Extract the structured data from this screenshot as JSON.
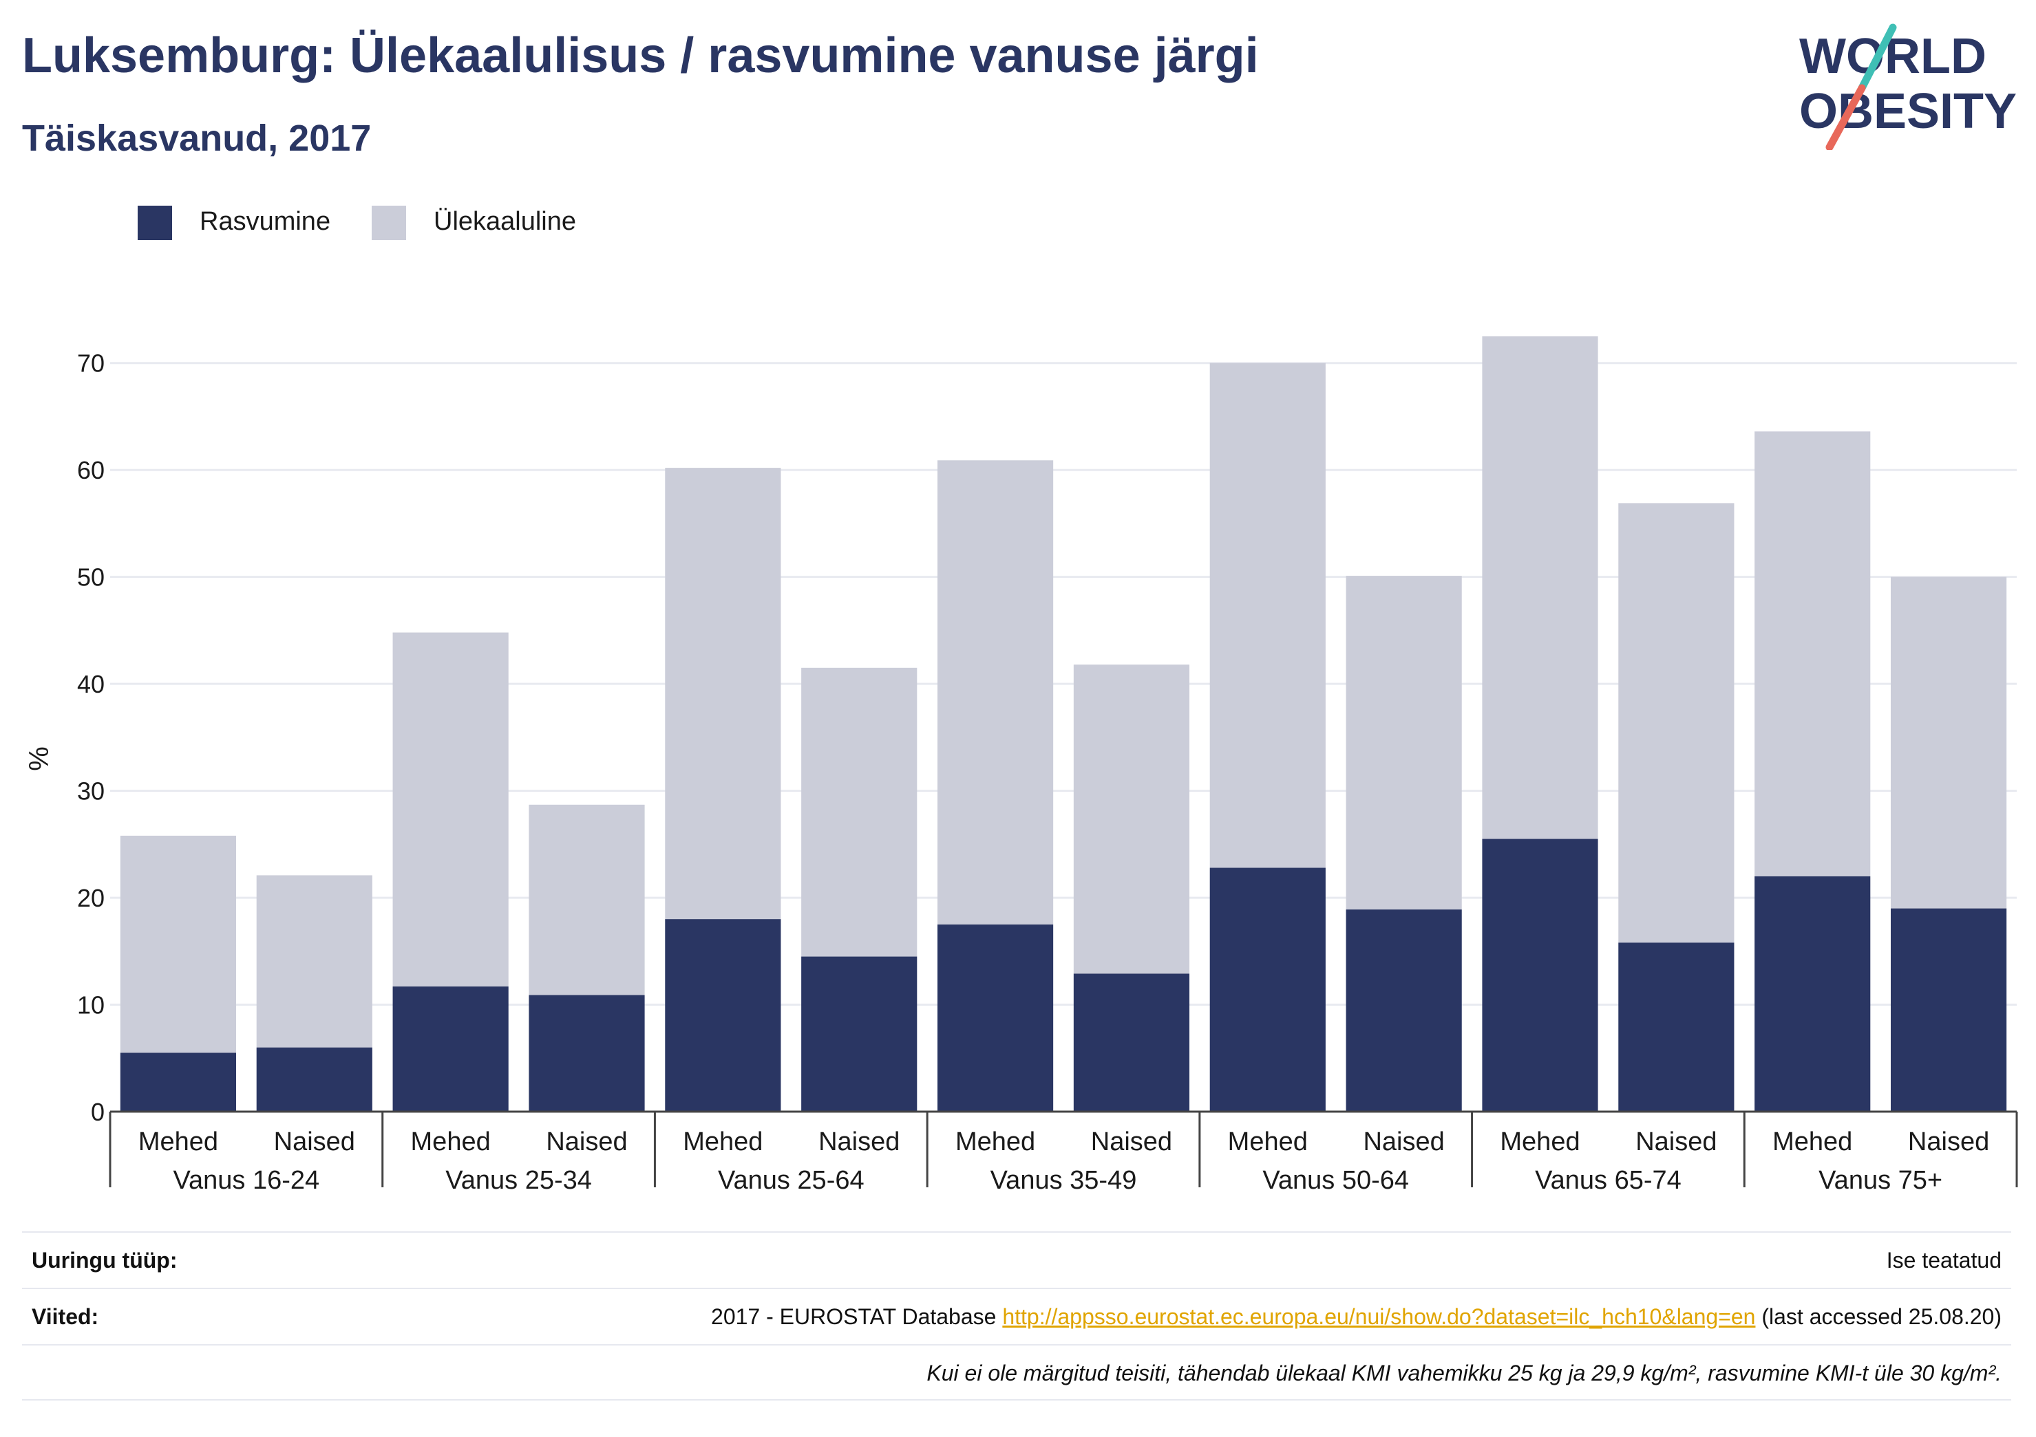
{
  "header": {
    "title": "Luksemburg: Ülekaalulisus / rasvumine vanuse järgi",
    "subtitle": "Täiskasvanud, 2017"
  },
  "logo": {
    "line1": "WORLD",
    "line2": "OBESITY"
  },
  "colors": {
    "obesity": "#2a3663",
    "overweight": "#cbcdd9",
    "title": "#2a3663",
    "logo_teal": "#3fbfb5",
    "logo_coral": "#e8685a"
  },
  "legend": [
    {
      "label": "Rasvumine",
      "color": "#2a3663"
    },
    {
      "label": "Ülekaaluline",
      "color": "#cbcdd9"
    }
  ],
  "chart_data": {
    "type": "bar",
    "stacked": true,
    "ylabel": "%",
    "ylim": [
      0,
      75
    ],
    "yticks": [
      0,
      10,
      20,
      30,
      40,
      50,
      60,
      70
    ],
    "grid": true,
    "legend_position": "top-left",
    "groups": [
      "Vanus 16-24",
      "Vanus 25-34",
      "Vanus 25-64",
      "Vanus 35-49",
      "Vanus 50-64",
      "Vanus 65-74",
      "Vanus 75+"
    ],
    "subcategories": [
      "Mehed",
      "Naised"
    ],
    "series": [
      {
        "name": "Rasvumine",
        "values": [
          5.5,
          6.0,
          11.7,
          10.9,
          18.0,
          14.5,
          17.5,
          12.9,
          22.8,
          18.9,
          25.5,
          15.8,
          22.0,
          19.0
        ]
      },
      {
        "name": "Ülekaaluline",
        "values": [
          20.3,
          16.1,
          33.1,
          17.8,
          42.2,
          27.0,
          43.4,
          28.9,
          47.2,
          31.2,
          47.0,
          41.1,
          41.6,
          31.0
        ]
      }
    ]
  },
  "footer": {
    "survey_label": "Uuringu tüüp:",
    "survey_value": "Ise teatatud",
    "refs_label": "Viited:",
    "refs_prefix": "2017 - EUROSTAT Database ",
    "refs_link": "http://appsso.eurostat.ec.europa.eu/nui/show.do?dataset=ilc_hch10&lang=en",
    "refs_suffix": " (last accessed 25.08.20)",
    "note": "Kui ei ole märgitud teisiti, tähendab ülekaal KMI vahemikku 25 kg ja 29,9 kg/m², rasvumine KMI-t üle 30 kg/m²."
  }
}
